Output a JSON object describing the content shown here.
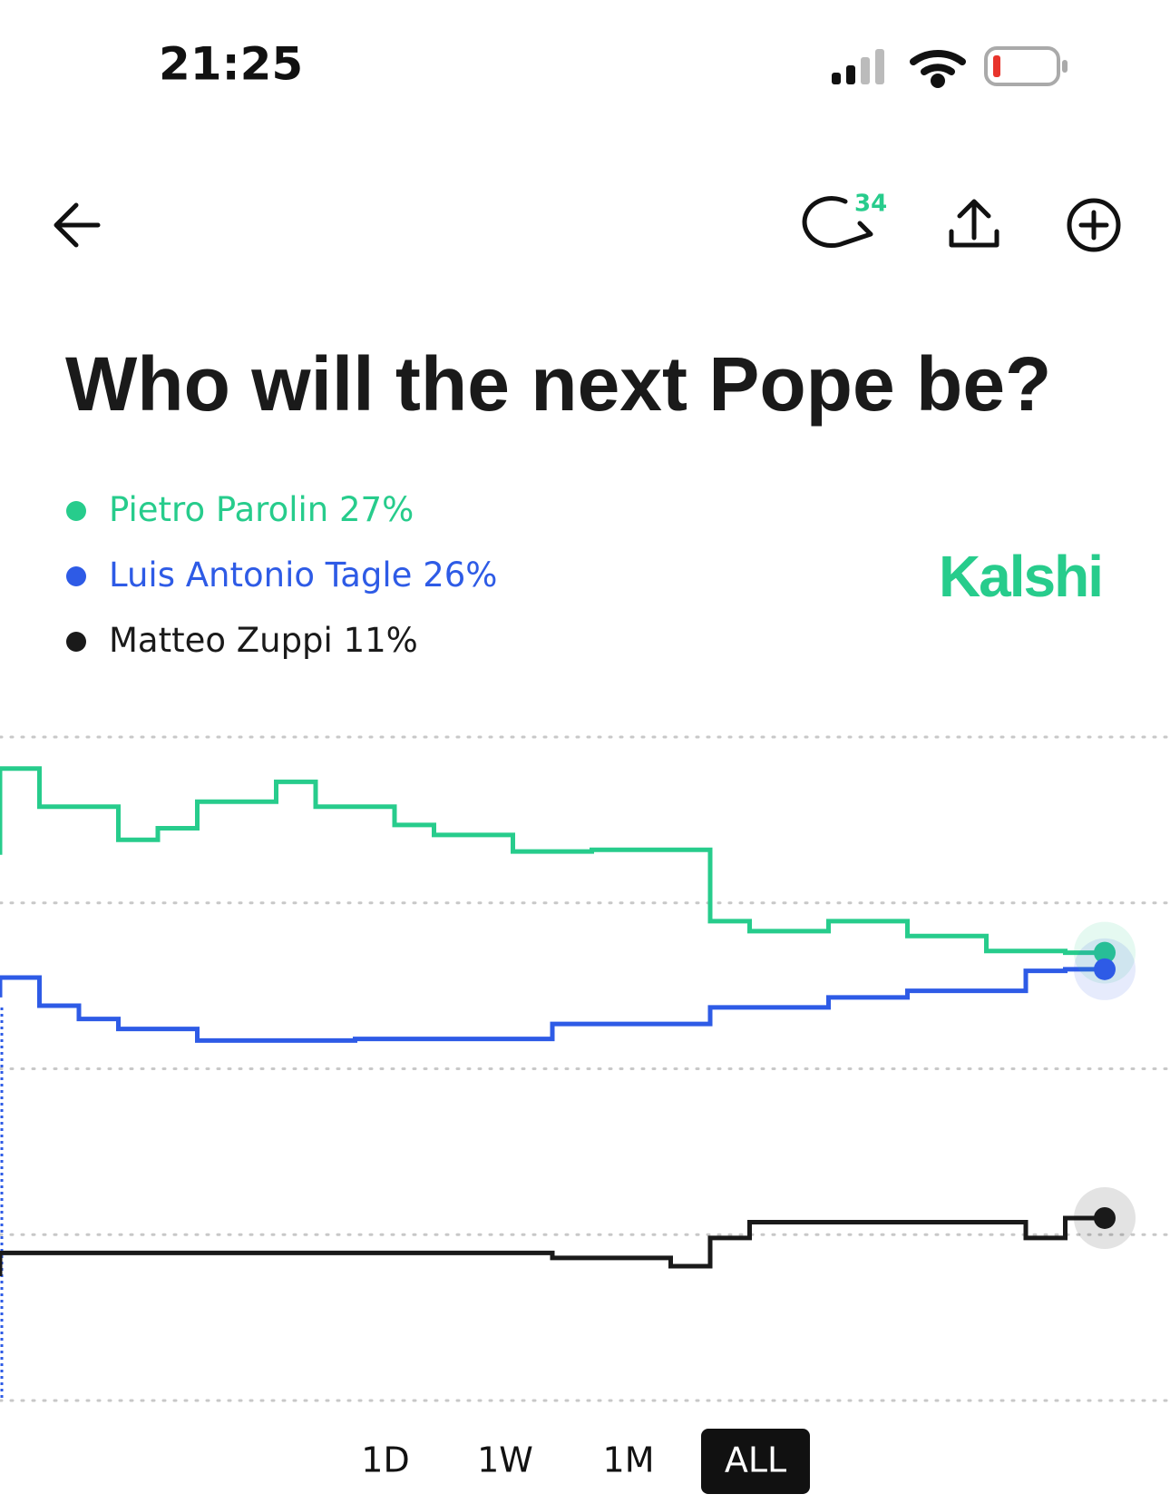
{
  "status_bar": {
    "time": "21:25"
  },
  "toolbar": {
    "comment_count": "34"
  },
  "brand": "Kalshi",
  "chart_data": {
    "type": "line",
    "title": "Who will the next Pope be?",
    "step": true,
    "grid": true,
    "ylim": [
      0,
      40
    ],
    "yticks": [
      0,
      10,
      20,
      30,
      40
    ],
    "series": [
      {
        "name": "Pietro Parolin",
        "color": "#27cc8c",
        "current": 27,
        "current_label": "27%",
        "values": [
          32.9,
          38.1,
          35.8,
          35.8,
          33.8,
          34.5,
          36.1,
          36.1,
          37.3,
          35.8,
          35.8,
          34.7,
          34.1,
          34.1,
          33.1,
          33.1,
          33.2,
          33.2,
          33.2,
          28.9,
          28.3,
          28.3,
          28.9,
          28.9,
          28,
          28,
          27.1,
          27.1,
          27
        ]
      },
      {
        "name": "Luis Antonio Tagle",
        "color": "#2e5be6",
        "current": 26,
        "current_label": "26%",
        "values": [
          24.3,
          25.5,
          23.8,
          23,
          22.4,
          22.4,
          21.7,
          21.7,
          21.7,
          21.7,
          21.8,
          21.8,
          21.8,
          21.8,
          21.8,
          22.7,
          22.7,
          22.7,
          22.7,
          23.7,
          23.7,
          23.7,
          24.3,
          24.3,
          24.7,
          24.7,
          24.7,
          25.9,
          26
        ]
      },
      {
        "name": "Matteo Zuppi",
        "color": "#1a1a1a",
        "current": 11,
        "current_label": "11%",
        "values": [
          7.5,
          8.9,
          8.9,
          8.9,
          8.9,
          8.9,
          8.9,
          8.9,
          8.9,
          8.9,
          8.9,
          8.9,
          8.9,
          8.9,
          8.9,
          8.6,
          8.6,
          8.6,
          8.1,
          9.8,
          10.75,
          10.75,
          10.75,
          10.75,
          10.75,
          10.75,
          10.75,
          9.8,
          11
        ]
      }
    ],
    "ranges": [
      "1D",
      "1W",
      "1M",
      "ALL"
    ],
    "selected_range": 3
  }
}
